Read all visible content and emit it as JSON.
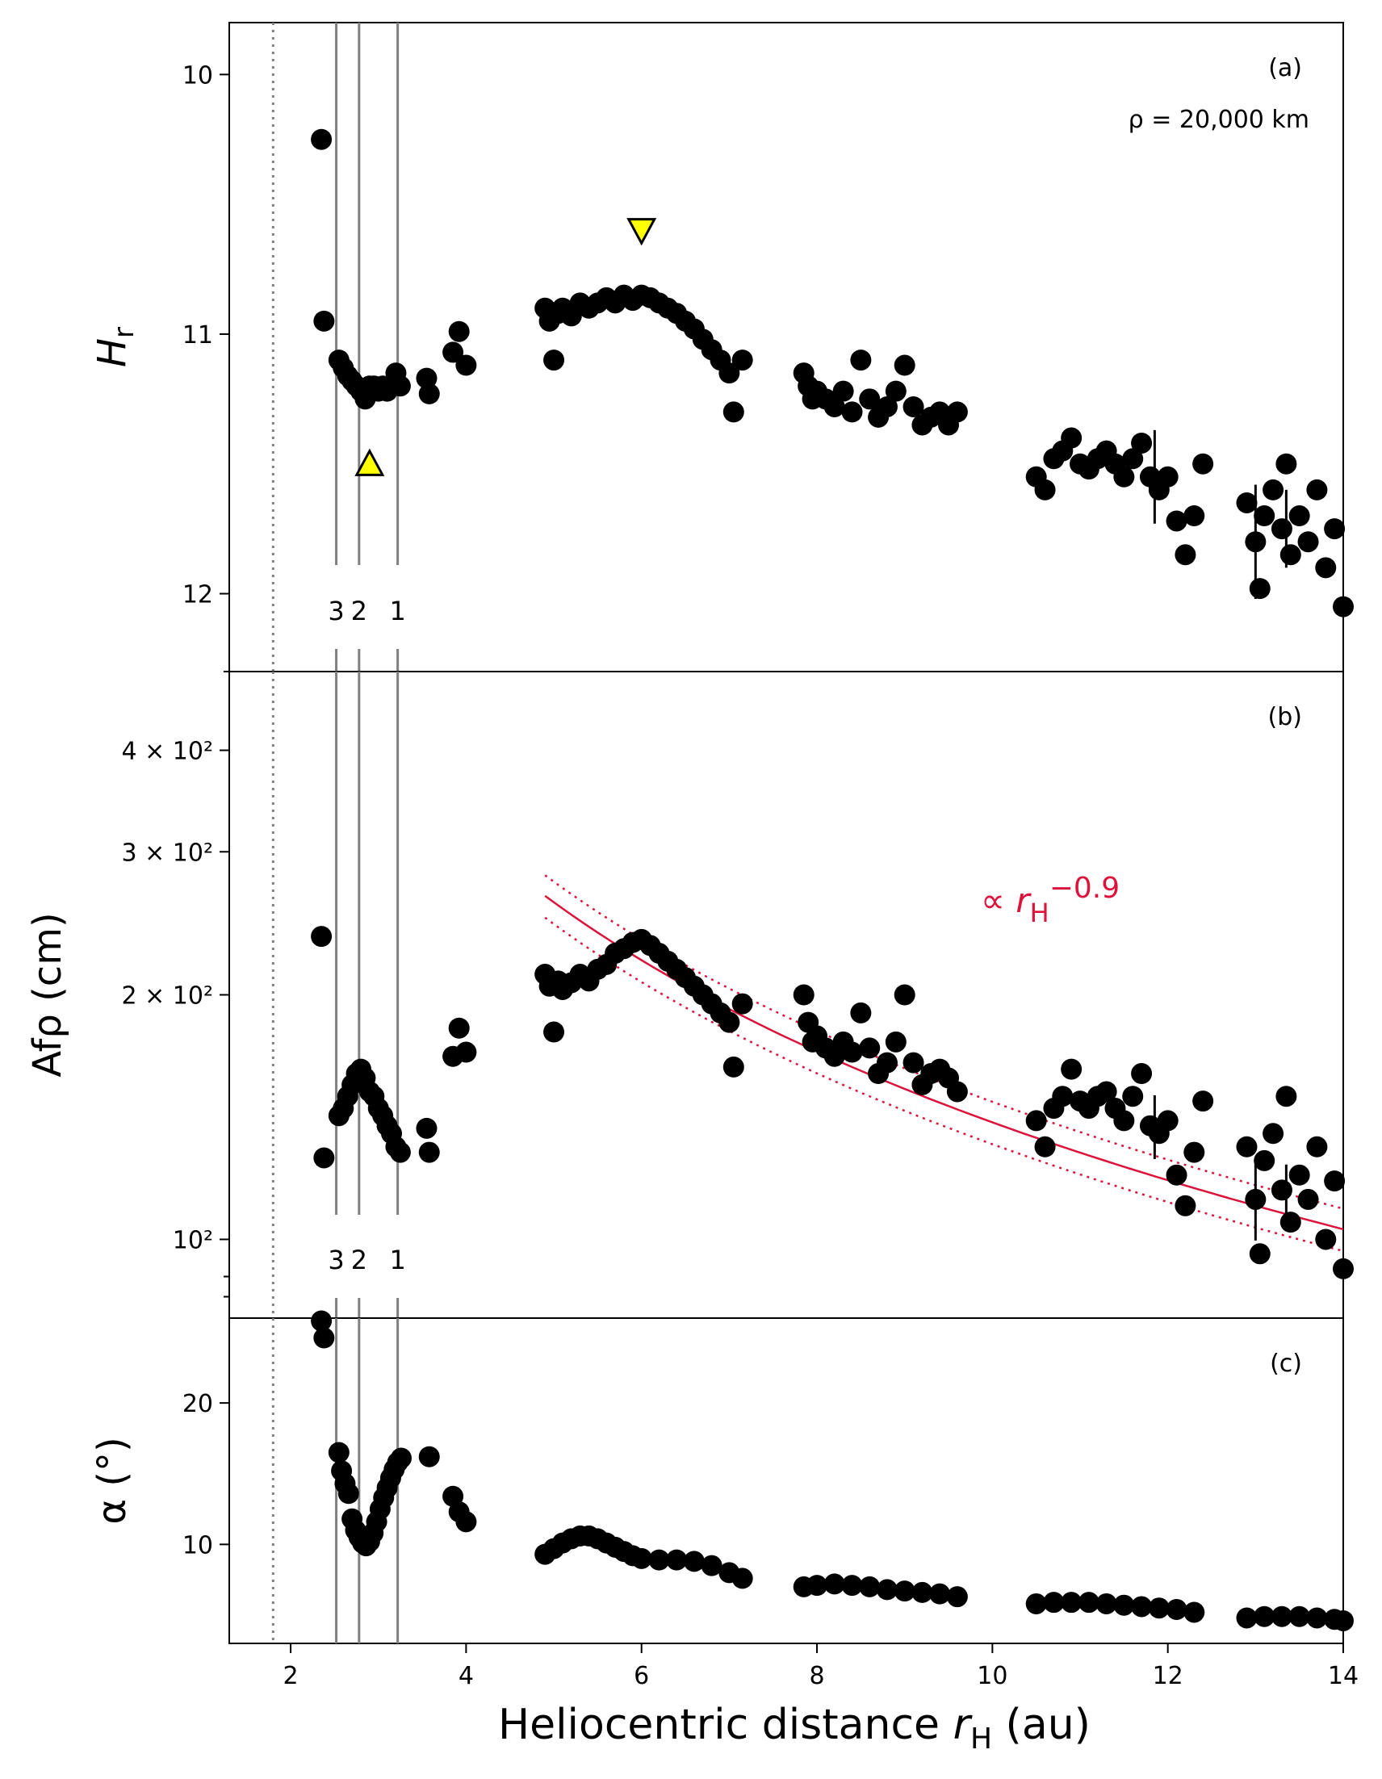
{
  "chart_data": {
    "type": "scatter",
    "shared_x": {
      "xlabel_text": "Heliocentric distance ",
      "xlabel_symbol": "r",
      "xlabel_sub": "H",
      "xlabel_unit": " (au)",
      "xlim": [
        1.3,
        14
      ],
      "xticks": [
        2,
        4,
        6,
        8,
        10,
        12,
        14
      ]
    },
    "reference_lines": {
      "dotted_x": 1.8,
      "solid_x": [
        2.52,
        2.78,
        3.22
      ],
      "labels": [
        {
          "text": "3",
          "x": 2.52
        },
        {
          "text": "2",
          "x": 2.78
        },
        {
          "text": "1",
          "x": 3.22
        }
      ]
    },
    "panels": [
      {
        "id": "a",
        "panel_label": "(a)",
        "note": "ρ = 20,000 km",
        "ylabel": "H",
        "ylabel_sub": "r",
        "ylim": [
          12.3,
          9.8
        ],
        "yinverted": true,
        "yticks": [
          10,
          11,
          12
        ],
        "markers": [
          {
            "shape": "triangle-up",
            "color": "#ffff00",
            "x": 2.9,
            "y": 11.5
          },
          {
            "shape": "triangle-down",
            "color": "#ffff00",
            "x": 6.0,
            "y": 10.6
          }
        ],
        "points": [
          [
            2.35,
            10.25
          ],
          [
            2.38,
            10.95
          ],
          [
            2.55,
            11.1
          ],
          [
            2.6,
            11.13
          ],
          [
            2.65,
            11.16
          ],
          [
            2.7,
            11.18
          ],
          [
            2.75,
            11.2
          ],
          [
            2.8,
            11.22
          ],
          [
            2.85,
            11.25
          ],
          [
            2.9,
            11.2
          ],
          [
            2.95,
            11.2
          ],
          [
            3.0,
            11.22
          ],
          [
            3.05,
            11.2
          ],
          [
            3.1,
            11.22
          ],
          [
            3.15,
            11.2
          ],
          [
            3.2,
            11.15
          ],
          [
            3.25,
            11.2
          ],
          [
            3.55,
            11.17
          ],
          [
            3.58,
            11.23
          ],
          [
            3.85,
            11.07
          ],
          [
            3.92,
            10.99
          ],
          [
            4.0,
            11.12
          ],
          [
            4.9,
            10.9
          ],
          [
            4.95,
            10.95
          ],
          [
            5.0,
            11.1
          ],
          [
            5.05,
            10.92
          ],
          [
            5.1,
            10.9
          ],
          [
            5.2,
            10.93
          ],
          [
            5.3,
            10.88
          ],
          [
            5.4,
            10.9
          ],
          [
            5.5,
            10.88
          ],
          [
            5.6,
            10.86
          ],
          [
            5.7,
            10.88
          ],
          [
            5.8,
            10.85
          ],
          [
            5.9,
            10.87
          ],
          [
            6.0,
            10.85
          ],
          [
            6.1,
            10.86
          ],
          [
            6.2,
            10.88
          ],
          [
            6.3,
            10.9
          ],
          [
            6.4,
            10.92
          ],
          [
            6.5,
            10.95
          ],
          [
            6.6,
            10.98
          ],
          [
            6.7,
            11.02
          ],
          [
            6.8,
            11.06
          ],
          [
            6.9,
            11.1
          ],
          [
            7.0,
            11.15
          ],
          [
            7.05,
            11.3
          ],
          [
            7.15,
            11.1
          ],
          [
            7.85,
            11.15
          ],
          [
            7.9,
            11.2
          ],
          [
            7.95,
            11.25
          ],
          [
            8.0,
            11.22
          ],
          [
            8.1,
            11.25
          ],
          [
            8.2,
            11.28
          ],
          [
            8.3,
            11.22
          ],
          [
            8.4,
            11.3
          ],
          [
            8.5,
            11.1
          ],
          [
            8.6,
            11.25
          ],
          [
            8.7,
            11.32
          ],
          [
            8.8,
            11.28
          ],
          [
            8.9,
            11.22
          ],
          [
            9.0,
            11.12
          ],
          [
            9.1,
            11.28
          ],
          [
            9.2,
            11.35
          ],
          [
            9.3,
            11.32
          ],
          [
            9.4,
            11.3
          ],
          [
            9.5,
            11.35
          ],
          [
            9.6,
            11.3
          ],
          [
            10.5,
            11.55
          ],
          [
            10.6,
            11.6
          ],
          [
            10.7,
            11.48
          ],
          [
            10.8,
            11.45
          ],
          [
            10.9,
            11.4
          ],
          [
            11.0,
            11.5
          ],
          [
            11.1,
            11.52
          ],
          [
            11.2,
            11.48
          ],
          [
            11.3,
            11.45
          ],
          [
            11.4,
            11.5
          ],
          [
            11.5,
            11.55
          ],
          [
            11.6,
            11.48
          ],
          [
            11.7,
            11.42
          ],
          [
            11.8,
            11.55
          ],
          [
            11.9,
            11.6
          ],
          [
            12.0,
            11.55
          ],
          [
            12.1,
            11.72
          ],
          [
            12.2,
            11.85
          ],
          [
            12.3,
            11.7
          ],
          [
            12.4,
            11.5
          ],
          [
            12.9,
            11.65
          ],
          [
            13.0,
            11.8
          ],
          [
            13.05,
            11.98
          ],
          [
            13.1,
            11.7
          ],
          [
            13.2,
            11.6
          ],
          [
            13.3,
            11.75
          ],
          [
            13.35,
            11.5
          ],
          [
            13.4,
            11.85
          ],
          [
            13.5,
            11.7
          ],
          [
            13.6,
            11.8
          ],
          [
            13.7,
            11.6
          ],
          [
            13.8,
            11.9
          ],
          [
            13.9,
            11.75
          ],
          [
            14.0,
            12.05
          ]
        ]
      },
      {
        "id": "b",
        "panel_label": "(b)",
        "ylabel": "Afρ (cm)",
        "yscale": "log",
        "ylim": [
          80,
          500
        ],
        "yticks": [
          {
            "value": 100,
            "label": "10²"
          },
          {
            "value": 200,
            "label": "2 × 10²"
          },
          {
            "value": 300,
            "label": "3 × 10²"
          },
          {
            "value": 400,
            "label": "4 × 10²"
          }
        ],
        "fit": {
          "label": "∝ r",
          "label_sub": "H",
          "label_exp": "−0.9",
          "exponent": -0.9,
          "norm_at_5": 260,
          "band": 0.06,
          "xrange": [
            4.9,
            14
          ]
        },
        "points": [
          [
            2.35,
            236
          ],
          [
            2.38,
            126
          ],
          [
            2.55,
            142
          ],
          [
            2.6,
            145
          ],
          [
            2.65,
            150
          ],
          [
            2.7,
            155
          ],
          [
            2.75,
            160
          ],
          [
            2.8,
            162
          ],
          [
            2.85,
            158
          ],
          [
            2.9,
            152
          ],
          [
            2.95,
            150
          ],
          [
            3.0,
            145
          ],
          [
            3.05,
            142
          ],
          [
            3.1,
            138
          ],
          [
            3.15,
            135
          ],
          [
            3.2,
            130
          ],
          [
            3.25,
            128
          ],
          [
            3.55,
            137
          ],
          [
            3.58,
            128
          ],
          [
            3.85,
            168
          ],
          [
            3.92,
            182
          ],
          [
            4.0,
            170
          ],
          [
            4.9,
            212
          ],
          [
            4.95,
            205
          ],
          [
            5.0,
            180
          ],
          [
            5.05,
            208
          ],
          [
            5.1,
            203
          ],
          [
            5.2,
            207
          ],
          [
            5.3,
            212
          ],
          [
            5.4,
            208
          ],
          [
            5.5,
            215
          ],
          [
            5.6,
            218
          ],
          [
            5.7,
            225
          ],
          [
            5.8,
            228
          ],
          [
            5.9,
            232
          ],
          [
            6.0,
            234
          ],
          [
            6.1,
            230
          ],
          [
            6.2,
            225
          ],
          [
            6.3,
            220
          ],
          [
            6.4,
            215
          ],
          [
            6.5,
            210
          ],
          [
            6.6,
            205
          ],
          [
            6.7,
            200
          ],
          [
            6.8,
            195
          ],
          [
            6.9,
            190
          ],
          [
            7.0,
            185
          ],
          [
            7.05,
            163
          ],
          [
            7.15,
            195
          ],
          [
            7.85,
            200
          ],
          [
            7.9,
            185
          ],
          [
            7.95,
            175
          ],
          [
            8.0,
            178
          ],
          [
            8.1,
            172
          ],
          [
            8.2,
            168
          ],
          [
            8.3,
            175
          ],
          [
            8.4,
            170
          ],
          [
            8.5,
            190
          ],
          [
            8.6,
            172
          ],
          [
            8.7,
            160
          ],
          [
            8.8,
            165
          ],
          [
            8.9,
            175
          ],
          [
            9.0,
            200
          ],
          [
            9.1,
            165
          ],
          [
            9.2,
            155
          ],
          [
            9.3,
            160
          ],
          [
            9.4,
            162
          ],
          [
            9.5,
            158
          ],
          [
            9.6,
            152
          ],
          [
            10.5,
            140
          ],
          [
            10.6,
            130
          ],
          [
            10.7,
            145
          ],
          [
            10.8,
            150
          ],
          [
            10.9,
            162
          ],
          [
            11.0,
            148
          ],
          [
            11.1,
            145
          ],
          [
            11.2,
            150
          ],
          [
            11.3,
            152
          ],
          [
            11.4,
            145
          ],
          [
            11.5,
            140
          ],
          [
            11.6,
            150
          ],
          [
            11.7,
            160
          ],
          [
            11.8,
            138
          ],
          [
            11.9,
            135
          ],
          [
            12.0,
            140
          ],
          [
            12.1,
            120
          ],
          [
            12.2,
            110
          ],
          [
            12.3,
            128
          ],
          [
            12.4,
            148
          ],
          [
            12.9,
            130
          ],
          [
            13.0,
            112
          ],
          [
            13.05,
            96
          ],
          [
            13.1,
            125
          ],
          [
            13.2,
            135
          ],
          [
            13.3,
            115
          ],
          [
            13.35,
            150
          ],
          [
            13.4,
            105
          ],
          [
            13.5,
            120
          ],
          [
            13.6,
            112
          ],
          [
            13.7,
            130
          ],
          [
            13.8,
            100
          ],
          [
            13.9,
            118
          ],
          [
            14.0,
            92
          ]
        ]
      },
      {
        "id": "c",
        "panel_label": "(c)",
        "ylabel": "α (°)",
        "ylim": [
          3,
          26
        ],
        "yticks": [
          10,
          20
        ],
        "points": [
          [
            2.35,
            25.8
          ],
          [
            2.38,
            24.6
          ],
          [
            2.55,
            16.5
          ],
          [
            2.58,
            15.2
          ],
          [
            2.62,
            14.3
          ],
          [
            2.66,
            13.6
          ],
          [
            2.7,
            11.8
          ],
          [
            2.74,
            11.0
          ],
          [
            2.78,
            10.5
          ],
          [
            2.82,
            10.1
          ],
          [
            2.86,
            9.9
          ],
          [
            2.9,
            10.2
          ],
          [
            2.94,
            10.8
          ],
          [
            2.98,
            11.6
          ],
          [
            3.02,
            12.5
          ],
          [
            3.06,
            13.3
          ],
          [
            3.1,
            14.0
          ],
          [
            3.14,
            14.7
          ],
          [
            3.18,
            15.3
          ],
          [
            3.22,
            15.8
          ],
          [
            3.26,
            16.1
          ],
          [
            3.58,
            16.2
          ],
          [
            3.85,
            13.4
          ],
          [
            3.92,
            12.3
          ],
          [
            4.0,
            11.6
          ],
          [
            4.9,
            9.3
          ],
          [
            5.0,
            9.7
          ],
          [
            5.1,
            10.1
          ],
          [
            5.2,
            10.4
          ],
          [
            5.3,
            10.6
          ],
          [
            5.4,
            10.6
          ],
          [
            5.5,
            10.4
          ],
          [
            5.6,
            10.1
          ],
          [
            5.7,
            9.8
          ],
          [
            5.8,
            9.5
          ],
          [
            5.9,
            9.2
          ],
          [
            6.0,
            9.0
          ],
          [
            6.2,
            8.9
          ],
          [
            6.4,
            8.9
          ],
          [
            6.6,
            8.8
          ],
          [
            6.8,
            8.5
          ],
          [
            7.0,
            8.0
          ],
          [
            7.15,
            7.6
          ],
          [
            7.85,
            7.0
          ],
          [
            8.0,
            7.1
          ],
          [
            8.2,
            7.2
          ],
          [
            8.4,
            7.1
          ],
          [
            8.6,
            7.0
          ],
          [
            8.8,
            6.8
          ],
          [
            9.0,
            6.7
          ],
          [
            9.2,
            6.6
          ],
          [
            9.4,
            6.5
          ],
          [
            9.6,
            6.3
          ],
          [
            10.5,
            5.8
          ],
          [
            10.7,
            5.9
          ],
          [
            10.9,
            5.9
          ],
          [
            11.1,
            5.9
          ],
          [
            11.3,
            5.8
          ],
          [
            11.5,
            5.7
          ],
          [
            11.7,
            5.6
          ],
          [
            11.9,
            5.5
          ],
          [
            12.1,
            5.4
          ],
          [
            12.3,
            5.2
          ],
          [
            12.9,
            4.8
          ],
          [
            13.1,
            4.9
          ],
          [
            13.3,
            4.9
          ],
          [
            13.5,
            4.9
          ],
          [
            13.7,
            4.8
          ],
          [
            13.9,
            4.7
          ],
          [
            14.0,
            4.6
          ]
        ]
      }
    ]
  }
}
